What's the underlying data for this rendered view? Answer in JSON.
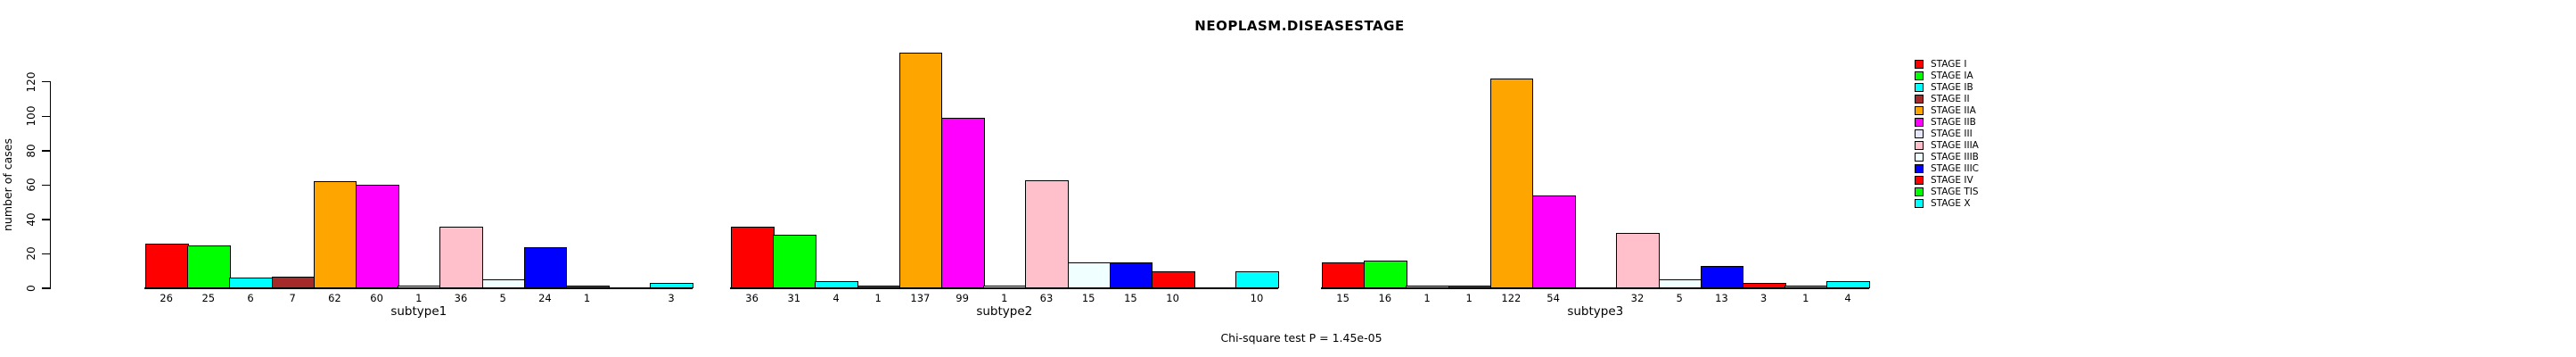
{
  "title": "NEOPLASM.DISEASESTAGE",
  "footer": {
    "annotation": "Chi-square test P = 1.45e-05"
  },
  "y_axis": {
    "label": "number of cases",
    "ticks": [
      0,
      20,
      40,
      60,
      80,
      100,
      120
    ]
  },
  "x_axis": {
    "group_labels": [
      "subtype1",
      "subtype2",
      "subtype3"
    ]
  },
  "legend": {
    "position": "right",
    "items": [
      {
        "label": "STAGE I",
        "color": "#FF0000"
      },
      {
        "label": "STAGE IA",
        "color": "#00FF00"
      },
      {
        "label": "STAGE IB",
        "color": "#00FFFF"
      },
      {
        "label": "STAGE II",
        "color": "#A52A2A"
      },
      {
        "label": "STAGE IIA",
        "color": "#FFA500"
      },
      {
        "label": "STAGE IIB",
        "color": "#FF00FF"
      },
      {
        "label": "STAGE III",
        "color": "#E6E6FA"
      },
      {
        "label": "STAGE IIIA",
        "color": "#FFC0CB"
      },
      {
        "label": "STAGE IIIB",
        "color": "#F0FFFF"
      },
      {
        "label": "STAGE IIIC",
        "color": "#0000FF"
      },
      {
        "label": "STAGE IV",
        "color": "#FF0000"
      },
      {
        "label": "STAGE TIS",
        "color": "#00FF00"
      },
      {
        "label": "STAGE X",
        "color": "#00FFFF"
      }
    ]
  },
  "chart_data": {
    "type": "bar",
    "title": "NEOPLASM.DISEASESTAGE",
    "xlabel": "",
    "ylabel": "number of cases",
    "ylim": [
      0,
      120
    ],
    "yticks": [
      0,
      20,
      40,
      60,
      80,
      100,
      120
    ],
    "grid": false,
    "legend_position": "right",
    "annotation": "Chi-square test P = 1.45e-05",
    "stages": [
      "STAGE I",
      "STAGE IA",
      "STAGE IB",
      "STAGE II",
      "STAGE IIA",
      "STAGE IIB",
      "STAGE III",
      "STAGE IIIA",
      "STAGE IIIB",
      "STAGE IIIC",
      "STAGE IV",
      "STAGE TIS",
      "STAGE X"
    ],
    "colors": [
      "#FF0000",
      "#00FF00",
      "#00FFFF",
      "#A52A2A",
      "#FFA500",
      "#FF00FF",
      "#E6E6FA",
      "#FFC0CB",
      "#F0FFFF",
      "#0000FF",
      "#FF0000",
      "#00FF00",
      "#00FFFF"
    ],
    "categories": [
      "subtype1",
      "subtype2",
      "subtype3"
    ],
    "series": [
      {
        "name": "subtype1",
        "values": [
          26,
          25,
          6,
          7,
          62,
          60,
          1,
          36,
          5,
          24,
          1,
          0,
          3
        ]
      },
      {
        "name": "subtype2",
        "values": [
          36,
          31,
          4,
          1,
          137,
          99,
          1,
          63,
          15,
          15,
          10,
          0,
          10
        ]
      },
      {
        "name": "subtype3",
        "values": [
          15,
          16,
          1,
          1,
          122,
          54,
          0,
          32,
          5,
          13,
          3,
          1,
          4
        ]
      }
    ],
    "zero_value_labels_hidden": true
  }
}
